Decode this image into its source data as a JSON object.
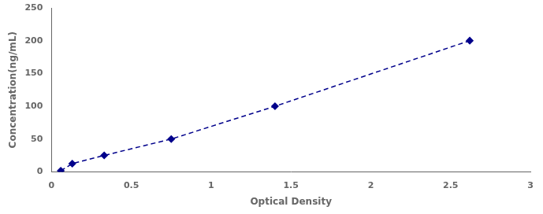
{
  "chart_data": {
    "type": "line",
    "x": [
      0.058,
      0.13,
      0.33,
      0.75,
      1.4,
      2.62
    ],
    "values": [
      1.56,
      12.5,
      25.0,
      50.0,
      100.0,
      200.0
    ],
    "color": "#00008B",
    "marker": "diamond",
    "line_style": "dashed",
    "xlabel": "Optical Density",
    "ylabel": "Concentration(ng/mL)",
    "xlim": [
      0,
      3
    ],
    "ylim": [
      0,
      250
    ],
    "xticks": [
      0,
      0.5,
      1,
      1.5,
      2,
      2.5,
      3
    ],
    "yticks": [
      0,
      50,
      100,
      150,
      200,
      250
    ],
    "grid": false
  }
}
